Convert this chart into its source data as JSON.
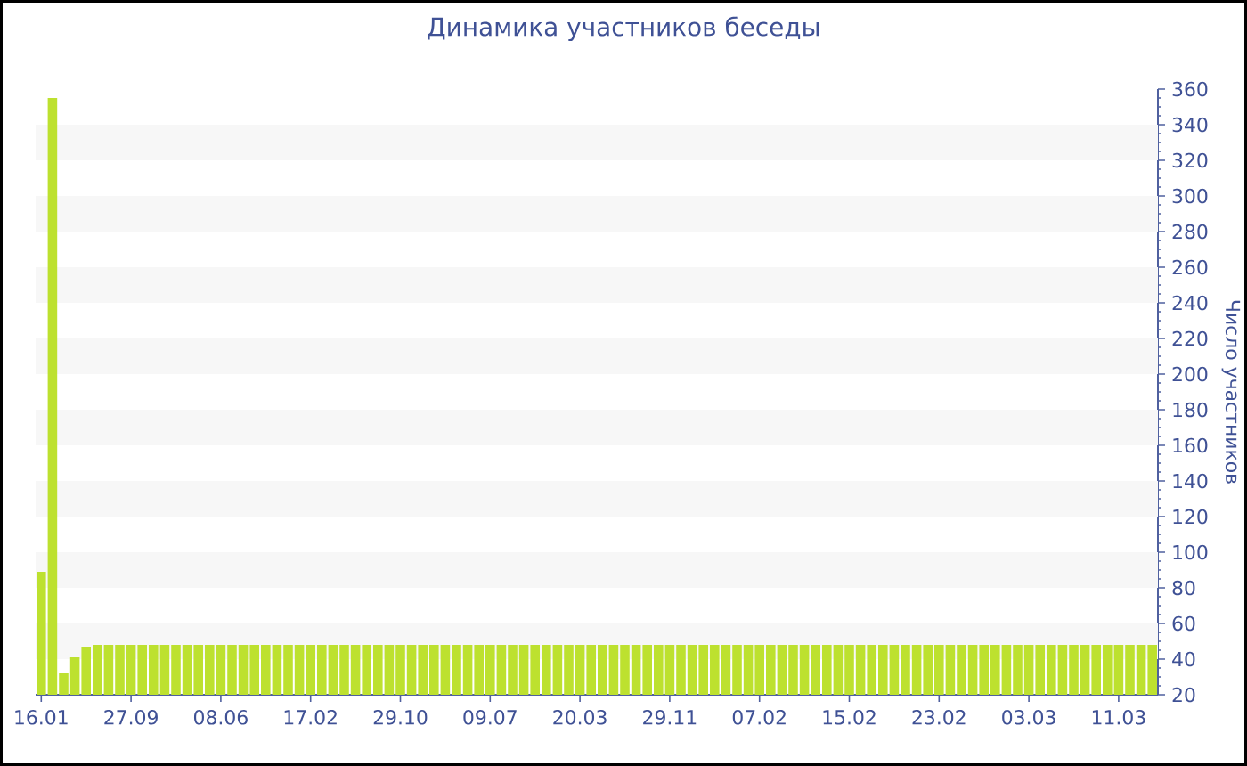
{
  "chart_data": {
    "type": "bar",
    "title": "Динамика участников беседы",
    "ylabel": "Число участников",
    "categories": [
      "16.01",
      null,
      null,
      null,
      null,
      null,
      null,
      null,
      "27.09",
      null,
      null,
      null,
      null,
      null,
      null,
      null,
      "08.06",
      null,
      null,
      null,
      null,
      null,
      null,
      null,
      "17.02",
      null,
      null,
      null,
      null,
      null,
      null,
      null,
      "29.10",
      null,
      null,
      null,
      null,
      null,
      null,
      null,
      "09.07",
      null,
      null,
      null,
      null,
      null,
      null,
      null,
      "20.03",
      null,
      null,
      null,
      null,
      null,
      null,
      null,
      "29.11",
      null,
      null,
      null,
      null,
      null,
      null,
      null,
      "07.02",
      null,
      null,
      null,
      null,
      null,
      null,
      null,
      "15.02",
      null,
      null,
      null,
      null,
      null,
      null,
      null,
      "23.02",
      null,
      null,
      null,
      null,
      null,
      null,
      null,
      "03.03",
      null,
      null,
      null,
      null,
      null,
      null,
      null,
      "11.03",
      null,
      null,
      null
    ],
    "values": [
      89,
      355,
      32,
      41,
      47,
      48,
      48,
      48,
      48,
      48,
      48,
      48,
      48,
      48,
      48,
      48,
      48,
      48,
      48,
      48,
      48,
      48,
      48,
      48,
      48,
      48,
      48,
      48,
      48,
      48,
      48,
      48,
      48,
      48,
      48,
      48,
      48,
      48,
      48,
      48,
      48,
      48,
      48,
      48,
      48,
      48,
      48,
      48,
      48,
      48,
      48,
      48,
      48,
      48,
      48,
      48,
      48,
      48,
      48,
      48,
      48,
      48,
      48,
      48,
      48,
      48,
      48,
      48,
      48,
      48,
      48,
      48,
      48,
      48,
      48,
      48,
      48,
      48,
      48,
      48,
      48,
      48,
      48,
      48,
      48,
      48,
      48,
      48,
      48,
      48,
      48,
      48,
      48,
      48,
      48,
      48,
      48,
      48,
      48,
      48
    ],
    "color": "#bde12f",
    "ylim": [
      20,
      360
    ],
    "yticks": [
      20,
      40,
      60,
      80,
      100,
      120,
      140,
      160,
      180,
      200,
      220,
      240,
      260,
      280,
      300,
      320,
      340,
      360
    ],
    "bands": [
      {
        "axis": "y",
        "from": 40,
        "to": 60,
        "color": "#f7f7f7"
      },
      {
        "axis": "y",
        "from": 80,
        "to": 100,
        "color": "#f7f7f7"
      },
      {
        "axis": "y",
        "from": 120,
        "to": 140,
        "color": "#f7f7f7"
      },
      {
        "axis": "y",
        "from": 160,
        "to": 180,
        "color": "#f7f7f7"
      },
      {
        "axis": "y",
        "from": 200,
        "to": 220,
        "color": "#f7f7f7"
      },
      {
        "axis": "y",
        "from": 240,
        "to": 260,
        "color": "#f7f7f7"
      },
      {
        "axis": "y",
        "from": 280,
        "to": 300,
        "color": "#f7f7f7"
      },
      {
        "axis": "y",
        "from": 320,
        "to": 340,
        "color": "#f7f7f7"
      }
    ]
  }
}
